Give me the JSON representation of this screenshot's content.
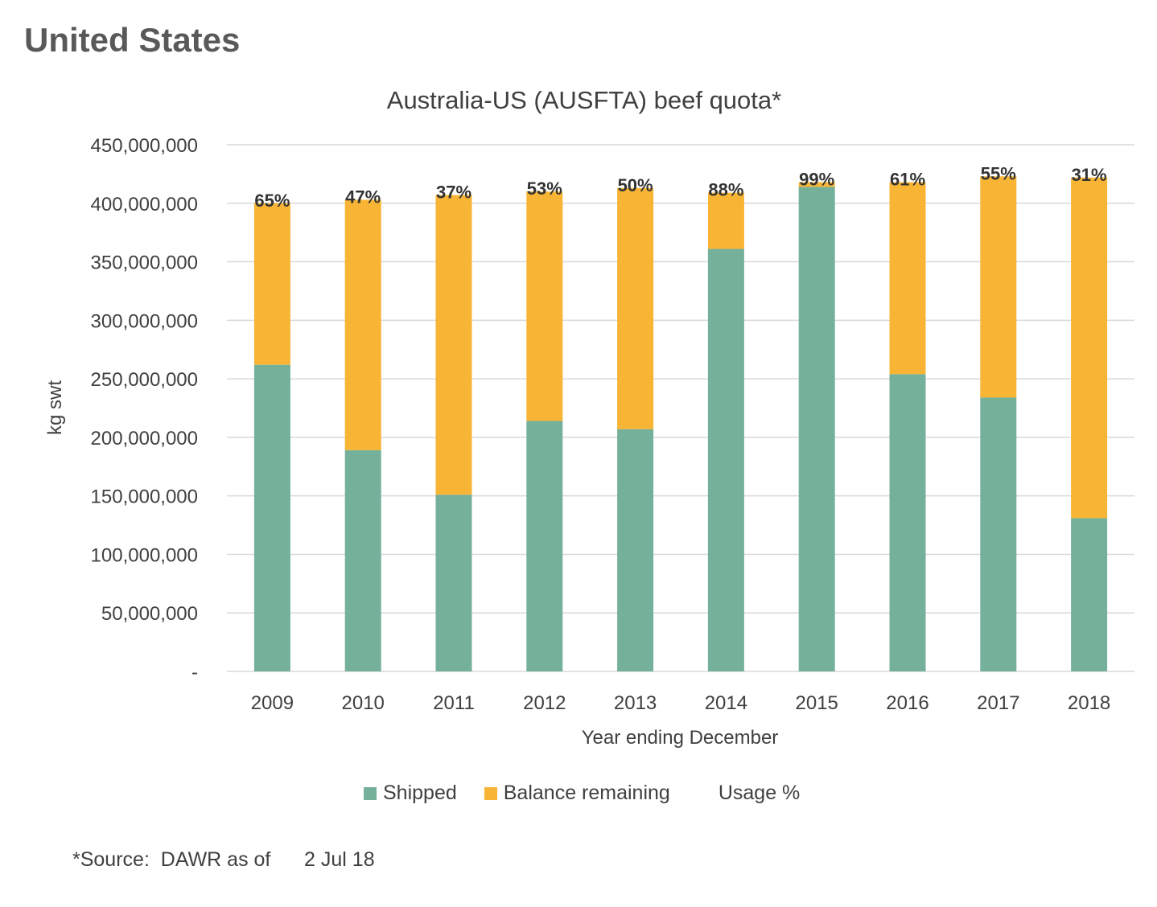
{
  "page": {
    "heading": "United States",
    "source_note": "*Source:  DAWR as of      2 Jul 18"
  },
  "colors": {
    "shipped": "#74B09A",
    "balance": "#F8B535",
    "grid": "#D9D9D9",
    "text": "#404040"
  },
  "chart_data": {
    "type": "bar",
    "stacked": true,
    "title": "Australia-US (AUSFTA) beef quota*",
    "xlabel": "Year ending December",
    "ylabel": "kg swt",
    "ylim": [
      0,
      450000000
    ],
    "y_ticks": [
      0,
      50000000,
      100000000,
      150000000,
      200000000,
      250000000,
      300000000,
      350000000,
      400000000,
      450000000
    ],
    "y_tick_labels": [
      "-",
      "50,000,000",
      "100,000,000",
      "150,000,000",
      "200,000,000",
      "250,000,000",
      "300,000,000",
      "350,000,000",
      "400,000,000",
      "450,000,000"
    ],
    "grid": true,
    "legend_position": "bottom",
    "categories": [
      "2009",
      "2010",
      "2011",
      "2012",
      "2013",
      "2014",
      "2015",
      "2016",
      "2017",
      "2018"
    ],
    "series": [
      {
        "name": "Shipped",
        "color": "#74B09A",
        "values": [
          262000000,
          189000000,
          151000000,
          214000000,
          207000000,
          361000000,
          414000000,
          254000000,
          234000000,
          131000000
        ]
      },
      {
        "name": "Balance remaining",
        "color": "#F8B535",
        "values": [
          138000000,
          214000000,
          256000000,
          196000000,
          206000000,
          48000000,
          4000000,
          164000000,
          189000000,
          291000000
        ]
      }
    ],
    "usage_series_name": "Usage %",
    "usage_labels": [
      "65%",
      "47%",
      "37%",
      "53%",
      "50%",
      "88%",
      "99%",
      "61%",
      "55%",
      "31%"
    ]
  }
}
